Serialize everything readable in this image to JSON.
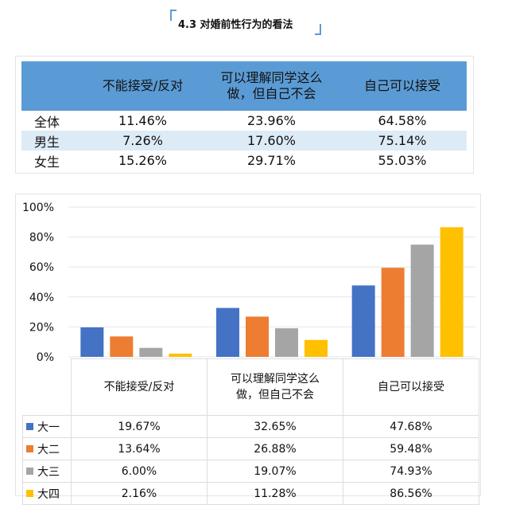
{
  "title": "4.3 对婚前性行为的看法",
  "summary_table": {
    "headers": [
      "",
      "不能接受/反对",
      "可以理解同学这么做，但自己不会",
      "自己可以接受"
    ],
    "header_lines": [
      [
        "不能接受/反对"
      ],
      [
        "可以理解同学这么",
        "做，但自己不会"
      ],
      [
        "自己可以接受"
      ]
    ],
    "rows": [
      {
        "label": "全体",
        "values": [
          "11.46%",
          "23.96%",
          "64.58%"
        ]
      },
      {
        "label": "男生",
        "values": [
          "7.26%",
          "17.60%",
          "75.14%"
        ]
      },
      {
        "label": "女生",
        "values": [
          "15.26%",
          "29.71%",
          "55.03%"
        ]
      }
    ]
  },
  "chart_data": {
    "type": "bar",
    "categories": [
      "不能接受/反对",
      "可以理解同学这么做，但自己不会",
      "自己可以接受"
    ],
    "category_lines": [
      [
        "不能接受/反对"
      ],
      [
        "可以理解同学这么",
        "做，但自己不会"
      ],
      [
        "自己可以接受"
      ]
    ],
    "series": [
      {
        "name": "大一",
        "color": "#4472c4",
        "values": [
          19.67,
          32.65,
          47.68
        ],
        "labels": [
          "19.67%",
          "32.65%",
          "47.68%"
        ]
      },
      {
        "name": "大二",
        "color": "#ed7d31",
        "values": [
          13.64,
          26.88,
          59.48
        ],
        "labels": [
          "13.64%",
          "26.88%",
          "59.48%"
        ]
      },
      {
        "name": "大三",
        "color": "#a5a5a5",
        "values": [
          6.0,
          19.07,
          74.93
        ],
        "labels": [
          "6.00%",
          "19.07%",
          "74.93%"
        ]
      },
      {
        "name": "大四",
        "color": "#ffc000",
        "values": [
          2.16,
          11.28,
          86.56
        ],
        "labels": [
          "2.16%",
          "11.28%",
          "86.56%"
        ]
      }
    ],
    "ylim": [
      0,
      100
    ],
    "yticks": [
      "0%",
      "20%",
      "40%",
      "60%",
      "80%",
      "100%"
    ],
    "grid": true,
    "legend": "data-table"
  }
}
